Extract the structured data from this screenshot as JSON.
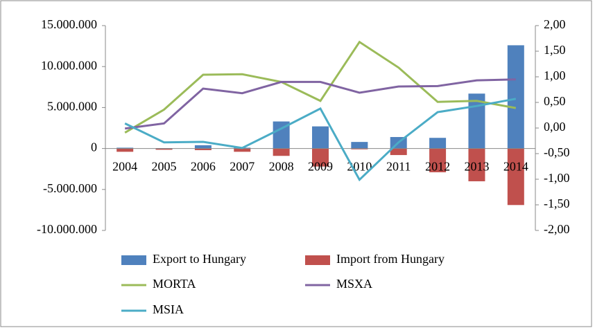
{
  "chart_data": {
    "type": "bar",
    "categories": [
      "2004",
      "2005",
      "2006",
      "2007",
      "2008",
      "2009",
      "2010",
      "2011",
      "2012",
      "2013",
      "2014"
    ],
    "series": [
      {
        "name": "Export to Hungary",
        "type": "bar",
        "color": "#4f81bd",
        "values": [
          100000,
          50000,
          400000,
          100000,
          3300000,
          2700000,
          800000,
          1400000,
          1300000,
          6700000,
          12600000
        ]
      },
      {
        "name": "Import from Hungary",
        "type": "bar",
        "color": "#c0504d",
        "values": [
          -400000,
          -150000,
          -200000,
          -400000,
          -900000,
          -2200000,
          -100000,
          -800000,
          -2900000,
          -4000000,
          -6900000
        ]
      },
      {
        "name": "MORTA",
        "type": "line",
        "axis": "y2",
        "color": "#9bbb59",
        "values": [
          -0.09,
          0.36,
          1.04,
          1.05,
          0.9,
          0.53,
          1.68,
          1.18,
          0.51,
          0.53,
          0.39
        ]
      },
      {
        "name": "MSXA",
        "type": "line",
        "axis": "y2",
        "color": "#8064a2",
        "values": [
          -0.01,
          0.09,
          0.77,
          0.68,
          0.9,
          0.9,
          0.69,
          0.81,
          0.82,
          0.93,
          0.95
        ]
      },
      {
        "name": "MSIA",
        "type": "line",
        "axis": "y2",
        "color": "#4bacc6",
        "values": [
          0.09,
          -0.28,
          -0.27,
          -0.39,
          -0.01,
          0.38,
          -1.01,
          -0.28,
          0.31,
          0.43,
          0.57
        ]
      }
    ],
    "ylim": [
      -10000000,
      15000000
    ],
    "yticks": [
      {
        "value": -10000000,
        "label": "-10.000.000"
      },
      {
        "value": -5000000,
        "label": "-5.000.000"
      },
      0,
      {
        "value": 5000000,
        "label": "5.000.000"
      },
      {
        "value": 10000000,
        "label": "10.000.000"
      },
      {
        "value": 15000000,
        "label": "15.000.000"
      }
    ],
    "y2lim": [
      -2,
      2
    ],
    "y2ticks": [
      {
        "value": -2,
        "label": "-2,00"
      },
      {
        "value": -1.5,
        "label": "-1,50"
      },
      {
        "value": -1,
        "label": "-1,00"
      },
      {
        "value": -0.5,
        "label": "-0,50"
      },
      {
        "value": 0,
        "label": "0,00"
      },
      {
        "value": 0.5,
        "label": "0,50"
      },
      {
        "value": 1,
        "label": "1,00"
      },
      {
        "value": 1.5,
        "label": "1,50"
      },
      {
        "value": 2,
        "label": "2,00"
      }
    ],
    "grid": false,
    "legend": "bottom"
  }
}
